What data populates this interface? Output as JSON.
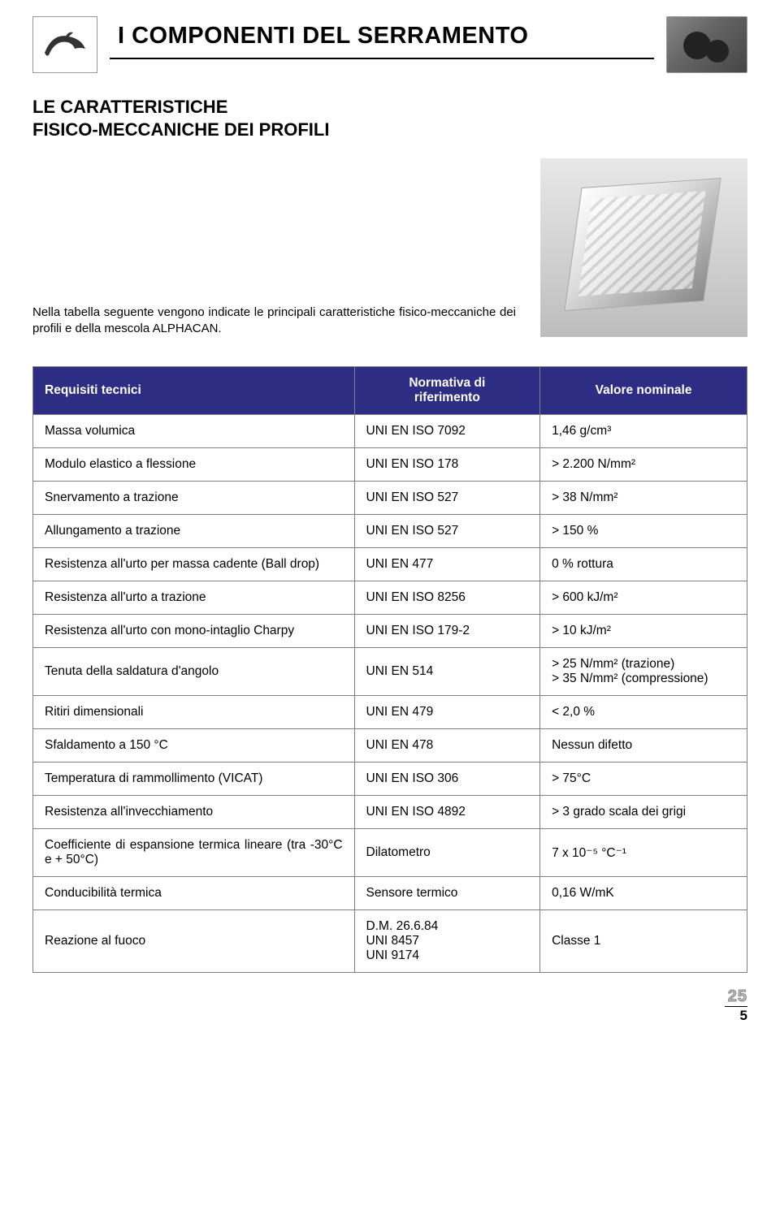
{
  "header": {
    "title": "I COMPONENTI DEL SERRAMENTO"
  },
  "subtitle_line1": "LE CARATTERISTICHE",
  "subtitle_line2": "FISICO-MECCANICHE DEI PROFILI",
  "intro": "Nella tabella seguente vengono indicate le principali caratteristiche fisico-meccaniche dei profili e della mescola ALPHACAN.",
  "table": {
    "header_bg": "#2d2e83",
    "header_fg": "#ffffff",
    "border_color": "#808080",
    "columns": [
      "Requisiti tecnici",
      "Normativa di riferimento",
      "Valore nominale"
    ],
    "rows": [
      [
        "Massa volumica",
        "UNI EN ISO 7092",
        "1,46 g/cm³"
      ],
      [
        "Modulo elastico a flessione",
        "UNI EN ISO 178",
        "> 2.200 N/mm²"
      ],
      [
        "Snervamento a trazione",
        "UNI EN ISO 527",
        "> 38 N/mm²"
      ],
      [
        "Allungamento a trazione",
        "UNI EN ISO 527",
        "> 150 %"
      ],
      [
        "Resistenza all'urto per massa cadente (Ball drop)",
        "UNI EN 477",
        "0 % rottura"
      ],
      [
        "Resistenza all'urto a trazione",
        "UNI EN ISO 8256",
        "> 600 kJ/m²"
      ],
      [
        "Resistenza all'urto con mono-intaglio Charpy",
        "UNI EN ISO 179-2",
        "> 10 kJ/m²"
      ],
      [
        "Tenuta della saldatura d'angolo",
        "UNI EN 514",
        "> 25 N/mm² (trazione)\n> 35 N/mm² (compressione)"
      ],
      [
        "Ritiri dimensionali",
        "UNI EN 479",
        "< 2,0 %"
      ],
      [
        "Sfaldamento a 150 °C",
        "UNI EN 478",
        "Nessun difetto"
      ],
      [
        "Temperatura di rammollimento (VICAT)",
        "UNI EN ISO 306",
        "> 75°C"
      ],
      [
        "Resistenza all'invecchiamento",
        "UNI EN ISO 4892",
        "> 3 grado scala dei grigi"
      ],
      [
        "Coefficiente di espansione termica lineare (tra -30°C e + 50°C)",
        "Dilatometro",
        "7 x 10⁻⁵ °C⁻¹"
      ],
      [
        "Conducibilità termica",
        "Sensore termico",
        "0,16 W/mK"
      ],
      [
        "Reazione al fuoco",
        "D.M. 26.6.84\nUNI 8457\nUNI 9174",
        "Classe 1"
      ]
    ]
  },
  "page": {
    "big": "25",
    "small": "5"
  }
}
